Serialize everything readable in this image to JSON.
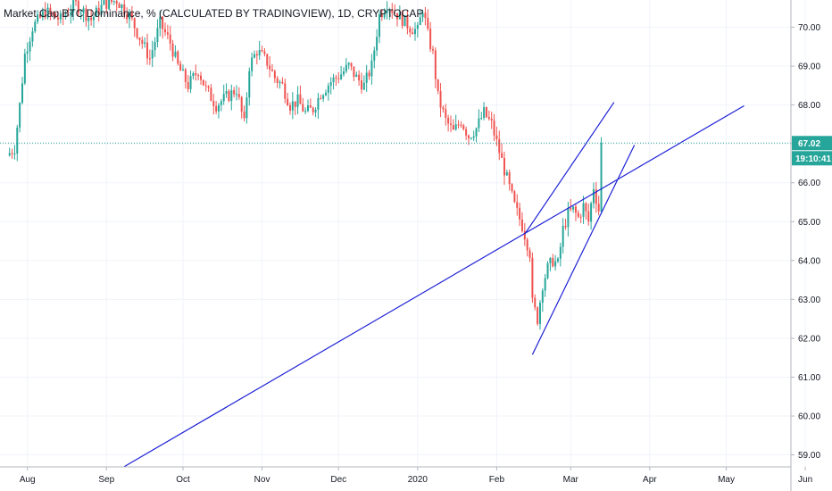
{
  "chart_data": {
    "type": "candlestick",
    "title": "Market Cap BTC Dominance, % (CALCULATED BY TRADINGVIEW), 1D, CRYPTOCAP",
    "y_range": [
      58.7,
      71.0
    ],
    "y_ticks": [
      {
        "v": 70,
        "label": "70.00"
      },
      {
        "v": 69,
        "label": "69.00"
      },
      {
        "v": 68,
        "label": "68.00"
      },
      {
        "v": 67,
        "label": "67.00"
      },
      {
        "v": 66,
        "label": "66.00"
      },
      {
        "v": 65,
        "label": "65.00"
      },
      {
        "v": 64,
        "label": "64.00"
      },
      {
        "v": 63,
        "label": "63.00"
      },
      {
        "v": 62,
        "label": "62.00"
      },
      {
        "v": 61,
        "label": "61.00"
      },
      {
        "v": 60,
        "label": "60.00"
      },
      {
        "v": 59,
        "label": "59.00"
      }
    ],
    "x_labels": [
      {
        "date": "2019-08-01",
        "label": "Aug"
      },
      {
        "date": "2019-09-01",
        "label": "Sep"
      },
      {
        "date": "2019-10-01",
        "label": "Oct"
      },
      {
        "date": "2019-11-01",
        "label": "Nov"
      },
      {
        "date": "2019-12-01",
        "label": "Dec"
      },
      {
        "date": "2020-01-01",
        "label": "2020"
      },
      {
        "date": "2020-02-01",
        "label": "Feb"
      },
      {
        "date": "2020-03-01",
        "label": "Mar"
      },
      {
        "date": "2020-04-01",
        "label": "Apr"
      },
      {
        "date": "2020-05-01",
        "label": "May"
      },
      {
        "date": "2020-06-01",
        "label": "Jun"
      }
    ],
    "closes": [
      {
        "date": "2019-07-24",
        "close": 66.7
      },
      {
        "date": "2019-07-27",
        "close": 66.9
      },
      {
        "date": "2019-07-29",
        "close": 68.0
      },
      {
        "date": "2019-07-31",
        "close": 69.3
      },
      {
        "date": "2019-08-03",
        "close": 70.0
      },
      {
        "date": "2019-08-08",
        "close": 70.4
      },
      {
        "date": "2019-08-14",
        "close": 70.2
      },
      {
        "date": "2019-08-20",
        "close": 70.6
      },
      {
        "date": "2019-08-26",
        "close": 70.2
      },
      {
        "date": "2019-08-31",
        "close": 70.6
      },
      {
        "date": "2019-09-05",
        "close": 70.7
      },
      {
        "date": "2019-09-10",
        "close": 70.3
      },
      {
        "date": "2019-09-15",
        "close": 69.6
      },
      {
        "date": "2019-09-18",
        "close": 69.2
      },
      {
        "date": "2019-09-22",
        "close": 70.1
      },
      {
        "date": "2019-09-26",
        "close": 69.6
      },
      {
        "date": "2019-09-29",
        "close": 69.0
      },
      {
        "date": "2019-10-03",
        "close": 68.5
      },
      {
        "date": "2019-10-07",
        "close": 68.9
      },
      {
        "date": "2019-10-10",
        "close": 68.4
      },
      {
        "date": "2019-10-14",
        "close": 68.0
      },
      {
        "date": "2019-10-18",
        "close": 68.2
      },
      {
        "date": "2019-10-22",
        "close": 68.4
      },
      {
        "date": "2019-10-25",
        "close": 67.5
      },
      {
        "date": "2019-10-27",
        "close": 69.0
      },
      {
        "date": "2019-10-30",
        "close": 69.4
      },
      {
        "date": "2019-11-03",
        "close": 69.1
      },
      {
        "date": "2019-11-06",
        "close": 68.7
      },
      {
        "date": "2019-11-09",
        "close": 68.5
      },
      {
        "date": "2019-11-12",
        "close": 68.0
      },
      {
        "date": "2019-11-15",
        "close": 68.1
      },
      {
        "date": "2019-11-18",
        "close": 67.8
      },
      {
        "date": "2019-11-21",
        "close": 67.9
      },
      {
        "date": "2019-11-24",
        "close": 68.3
      },
      {
        "date": "2019-11-28",
        "close": 68.6
      },
      {
        "date": "2019-12-02",
        "close": 68.8
      },
      {
        "date": "2019-12-05",
        "close": 69.0
      },
      {
        "date": "2019-12-08",
        "close": 68.7
      },
      {
        "date": "2019-12-11",
        "close": 68.5
      },
      {
        "date": "2019-12-14",
        "close": 69.0
      },
      {
        "date": "2019-12-17",
        "close": 70.3
      },
      {
        "date": "2019-12-20",
        "close": 70.6
      },
      {
        "date": "2019-12-23",
        "close": 70.4
      },
      {
        "date": "2019-12-26",
        "close": 70.2
      },
      {
        "date": "2019-12-29",
        "close": 70.0
      },
      {
        "date": "2020-01-01",
        "close": 69.9
      },
      {
        "date": "2020-01-03",
        "close": 70.5
      },
      {
        "date": "2020-01-05",
        "close": 69.8
      },
      {
        "date": "2020-01-07",
        "close": 69.3
      },
      {
        "date": "2020-01-09",
        "close": 68.2
      },
      {
        "date": "2020-01-12",
        "close": 67.6
      },
      {
        "date": "2020-01-15",
        "close": 67.3
      },
      {
        "date": "2020-01-18",
        "close": 67.6
      },
      {
        "date": "2020-01-21",
        "close": 67.2
      },
      {
        "date": "2020-01-24",
        "close": 67.4
      },
      {
        "date": "2020-01-27",
        "close": 67.8
      },
      {
        "date": "2020-01-30",
        "close": 67.5
      },
      {
        "date": "2020-02-02",
        "close": 66.8
      },
      {
        "date": "2020-02-05",
        "close": 66.1
      },
      {
        "date": "2020-02-08",
        "close": 65.4
      },
      {
        "date": "2020-02-11",
        "close": 64.9
      },
      {
        "date": "2020-02-14",
        "close": 64.2
      },
      {
        "date": "2020-02-15",
        "close": 62.9
      },
      {
        "date": "2020-02-17",
        "close": 62.5
      },
      {
        "date": "2020-02-19",
        "close": 63.4
      },
      {
        "date": "2020-02-21",
        "close": 63.8
      },
      {
        "date": "2020-02-23",
        "close": 64.0
      },
      {
        "date": "2020-02-25",
        "close": 63.9
      },
      {
        "date": "2020-02-27",
        "close": 64.8
      },
      {
        "date": "2020-02-29",
        "close": 65.2
      },
      {
        "date": "2020-03-02",
        "close": 65.3
      },
      {
        "date": "2020-03-04",
        "close": 65.1
      },
      {
        "date": "2020-03-06",
        "close": 65.4
      },
      {
        "date": "2020-03-08",
        "close": 65.0
      },
      {
        "date": "2020-03-10",
        "close": 65.9
      },
      {
        "date": "2020-03-12",
        "close": 65.3
      },
      {
        "date": "2020-03-13",
        "close": 67.02
      }
    ],
    "trendlines": [
      {
        "from": {
          "date": "2019-09-08",
          "value": 58.7
        },
        "to": {
          "date": "2020-05-08",
          "value": 67.98
        }
      },
      {
        "from": {
          "date": "2020-02-12",
          "value": 64.68
        },
        "to": {
          "date": "2020-03-18",
          "value": 68.07
        }
      },
      {
        "from": {
          "date": "2020-02-15",
          "value": 61.58
        },
        "to": {
          "date": "2020-03-26",
          "value": 66.97
        }
      }
    ],
    "last_price": {
      "label": "67.02",
      "value": 67.02
    },
    "countdown": {
      "label": "19:10:41"
    },
    "colors": {
      "up": "#26a69a",
      "down": "#ef5350",
      "trendline": "#1e22d6",
      "price_line": "#26a69a",
      "grid": "#f0f3fa",
      "axis_text": "#131722"
    }
  }
}
